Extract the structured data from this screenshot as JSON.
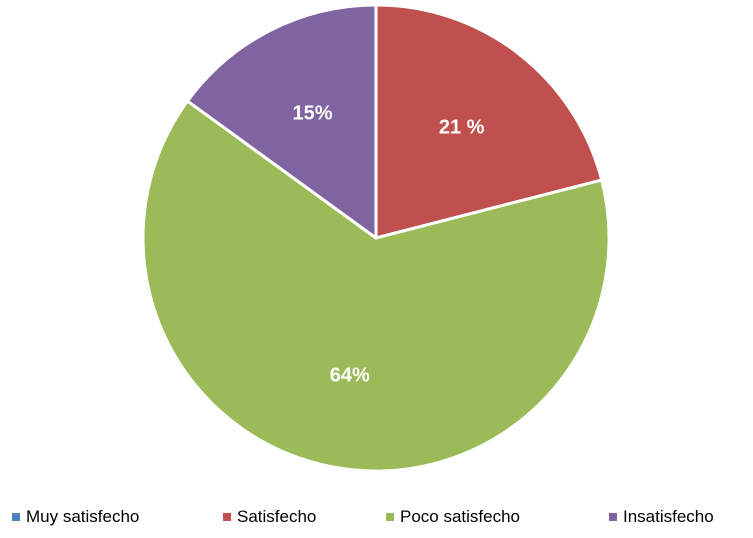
{
  "chart_data": {
    "type": "pie",
    "categories": [
      "Muy satisfecho",
      "Satisfecho",
      "Poco satisfecho",
      "Insatisfecho"
    ],
    "values": [
      0,
      21,
      64,
      15
    ],
    "data_labels": [
      "",
      "21 %",
      "64%",
      "15%"
    ],
    "colors": [
      "#4F81BD",
      "#C0504D",
      "#9BBB59",
      "#8064A2"
    ],
    "legend_position": "bottom",
    "start_angle_deg": 0,
    "direction": "clockwise"
  }
}
